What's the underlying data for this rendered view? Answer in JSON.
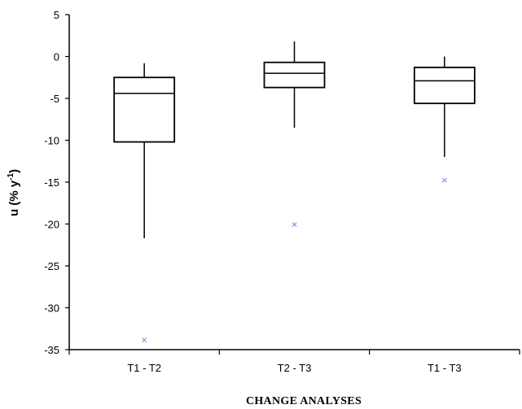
{
  "chart_data": {
    "type": "boxplot",
    "title": "",
    "xlabel": "CHANGE ANALYSES",
    "ylabel": {
      "main": "u  (% y",
      "sup": "-1",
      "end": ")"
    },
    "ylim": [
      -35,
      5
    ],
    "yticks": [
      "5",
      "0",
      "-5",
      "-10",
      "-15",
      "-20",
      "-25",
      "-30",
      "-35"
    ],
    "ytick_values": [
      5,
      0,
      -5,
      -10,
      -15,
      -20,
      -25,
      -30,
      -35
    ],
    "categories": [
      "T1 - T2",
      "T2 - T3",
      "T1 - T3"
    ],
    "boxes": [
      {
        "whisker_low": -21.7,
        "q1": -10.2,
        "median": -4.4,
        "q3": -2.5,
        "whisker_high": -0.8,
        "outlier": -33.8
      },
      {
        "whisker_low": -8.5,
        "q1": -3.7,
        "median": -2.0,
        "q3": -0.7,
        "whisker_high": 1.8,
        "outlier": -20.0
      },
      {
        "whisker_low": -12.0,
        "q1": -5.6,
        "median": -2.9,
        "q3": -1.3,
        "whisker_high": 0.0,
        "outlier": -14.7
      }
    ],
    "outlier_symbol": "×",
    "colors": {
      "box": "#000000",
      "outlier": "#7f7fd6"
    }
  }
}
